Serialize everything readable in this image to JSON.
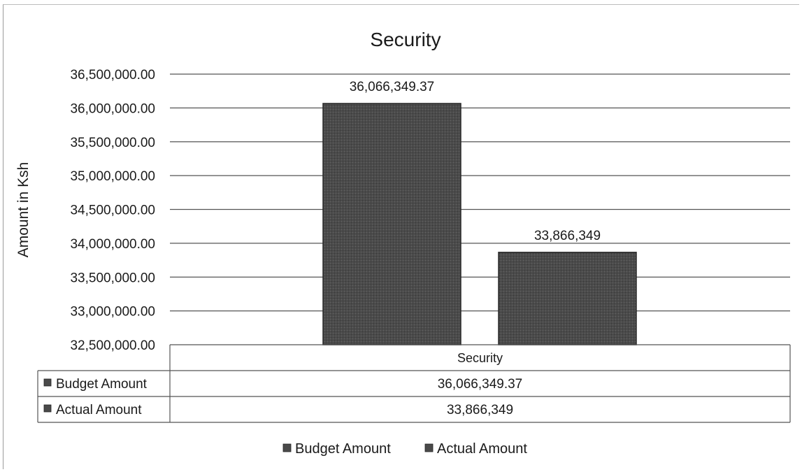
{
  "chart_data": {
    "type": "bar",
    "title": "Security",
    "ylabel": "Amount in Ksh",
    "xlabel": "",
    "categories": [
      "Security"
    ],
    "series": [
      {
        "name": "Budget Amount",
        "values": [
          36066349.37
        ],
        "label": "36,066,349.37",
        "color": "#4a4a4a"
      },
      {
        "name": "Actual Amount",
        "values": [
          33866349
        ],
        "label": "33,866,349",
        "color": "#4a4a4a"
      }
    ],
    "ylim": [
      32500000,
      36500000
    ],
    "ytick_values": [
      32500000,
      33000000,
      33500000,
      34000000,
      34500000,
      35000000,
      35500000,
      36000000,
      36500000
    ],
    "ytick_labels": [
      "32,500,000.00",
      "33,000,000.00",
      "33,500,000.00",
      "34,000,000.00",
      "34,500,000.00",
      "35,000,000.00",
      "35,500,000.00",
      "36,000,000.00",
      "36,500,000.00"
    ],
    "grid": true,
    "legend_position": "bottom",
    "data_table": {
      "header": "Security",
      "rows": [
        {
          "label": "Budget Amount",
          "value": "36,066,349.37"
        },
        {
          "label": "Actual Amount",
          "value": "33,866,349"
        }
      ]
    }
  }
}
